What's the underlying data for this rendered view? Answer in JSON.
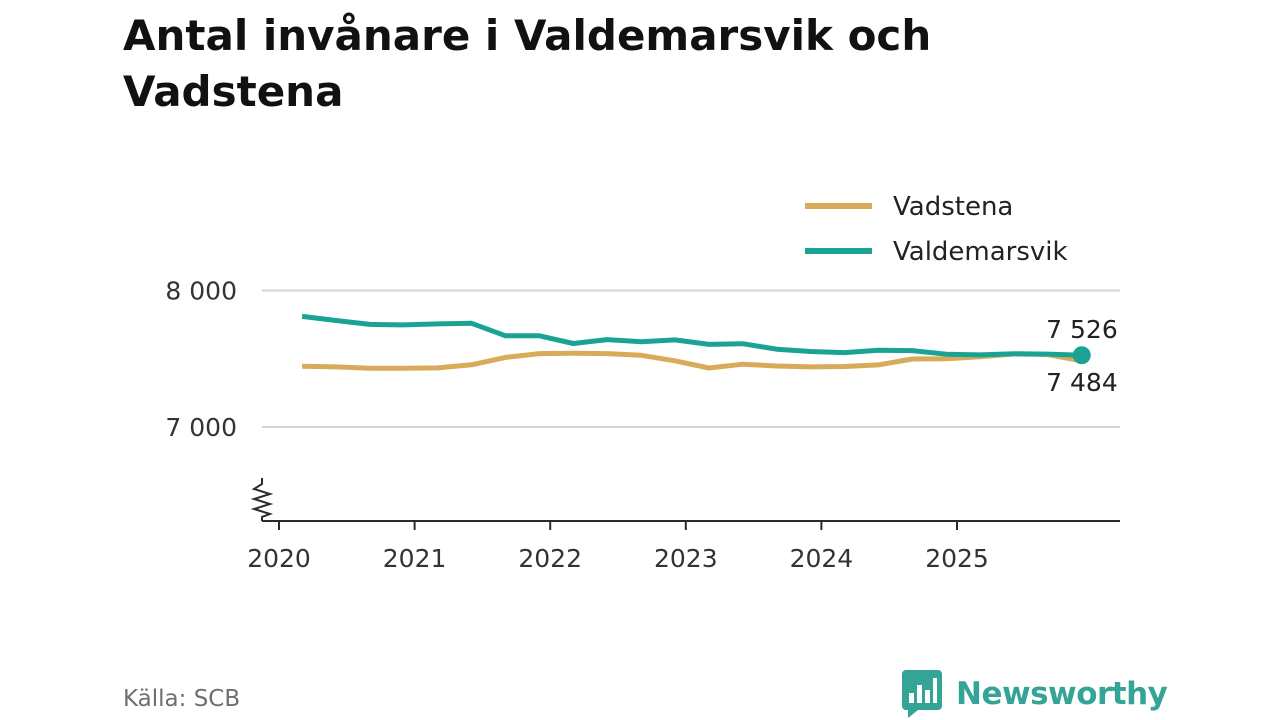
{
  "chart_data": {
    "type": "line",
    "title": "Antal invånare i Valdemarsvik och Vadstena",
    "xlabel": "",
    "ylabel": "",
    "x_ticks": [
      "2020",
      "2021",
      "2022",
      "2023",
      "2024",
      "2025"
    ],
    "y_ticks": [
      "7 000",
      "8 000"
    ],
    "ylim": [
      6300,
      8150
    ],
    "y_break": true,
    "legend_position": "top-right",
    "series": [
      {
        "name": "Vadstena",
        "color": "#d8ab5a",
        "x": [
          2020.17,
          2020.42,
          2020.67,
          2020.92,
          2021.17,
          2021.42,
          2021.67,
          2021.92,
          2022.17,
          2022.42,
          2022.67,
          2022.92,
          2023.17,
          2023.42,
          2023.67,
          2023.92,
          2024.17,
          2024.42,
          2024.67,
          2024.92,
          2025.17,
          2025.42,
          2025.67,
          2025.92
        ],
        "values": [
          7445,
          7440,
          7430,
          7430,
          7433,
          7456,
          7510,
          7538,
          7540,
          7538,
          7525,
          7485,
          7432,
          7460,
          7447,
          7440,
          7443,
          7455,
          7498,
          7500,
          7515,
          7535,
          7531,
          7484
        ],
        "end_label": "7 484"
      },
      {
        "name": "Valdemarsvik",
        "color": "#1aa394",
        "x": [
          2020.17,
          2020.42,
          2020.67,
          2020.92,
          2021.17,
          2021.42,
          2021.67,
          2021.92,
          2022.17,
          2022.42,
          2022.67,
          2022.92,
          2023.17,
          2023.42,
          2023.67,
          2023.92,
          2024.17,
          2024.42,
          2024.67,
          2024.92,
          2025.17,
          2025.42,
          2025.67,
          2025.92
        ],
        "values": [
          7810,
          7780,
          7752,
          7748,
          7755,
          7760,
          7668,
          7668,
          7612,
          7640,
          7625,
          7638,
          7605,
          7610,
          7570,
          7553,
          7545,
          7562,
          7560,
          7533,
          7528,
          7537,
          7534,
          7526
        ],
        "end_label": "7 526"
      }
    ]
  },
  "footer": {
    "source": "Källa: SCB",
    "brand": "Newsworthy"
  }
}
